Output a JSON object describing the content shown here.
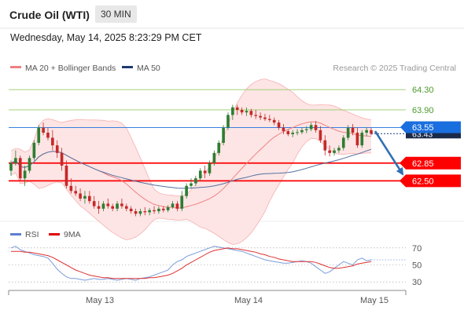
{
  "header": {
    "instrument": "Crude Oil (WTI)",
    "timeframe": "30 MIN",
    "datetime": "Wednesday, May 14, 2025 8:23:29 PM CET"
  },
  "legend": {
    "ma20_bb": "MA 20 + Bollinger Bands",
    "ma50": "MA 50",
    "credit": "Research © 2025 Trading Central",
    "rsi": "RSI",
    "ma9": "9MA"
  },
  "colors": {
    "bull": "#2e7d32",
    "bear": "#c62828",
    "bollinger_fill": "#fde0e0",
    "ma20": "#f08080",
    "ma50": "#5470a0",
    "support": "#ff0000",
    "resistance": "#99cc66",
    "last_price": "#1a6fdf",
    "projection": "#2f6fb4",
    "rsi": "#7a9cd8",
    "rsi_ma": "#e03030"
  },
  "chart_data": [
    {
      "type": "candlestick",
      "x_labels": [
        "May 13",
        "May 14",
        "May 15"
      ],
      "y_range": [
        61.7,
        64.55
      ],
      "levels": [
        {
          "value": 64.3,
          "label": "64.30",
          "kind": "resistance"
        },
        {
          "value": 63.9,
          "label": "63.90",
          "kind": "resistance"
        },
        {
          "value": 63.55,
          "label": "63.55",
          "kind": "pivot"
        },
        {
          "value": 62.85,
          "label": "62.85",
          "kind": "support"
        },
        {
          "value": 62.5,
          "label": "62.50",
          "kind": "support"
        }
      ],
      "last_price": {
        "value": 63.43,
        "label": "63.43"
      },
      "candles": [
        [
          62.7,
          62.9,
          62.6,
          62.85
        ],
        [
          62.85,
          63.1,
          62.8,
          62.95
        ],
        [
          62.95,
          63.0,
          62.5,
          62.55
        ],
        [
          62.55,
          62.8,
          62.4,
          62.7
        ],
        [
          62.7,
          63.0,
          62.65,
          62.95
        ],
        [
          62.95,
          63.3,
          62.9,
          63.25
        ],
        [
          63.25,
          63.6,
          63.2,
          63.55
        ],
        [
          63.55,
          63.65,
          63.4,
          63.45
        ],
        [
          63.45,
          63.55,
          63.3,
          63.35
        ],
        [
          63.35,
          63.5,
          63.1,
          63.2
        ],
        [
          63.2,
          63.3,
          62.95,
          63.05
        ],
        [
          63.05,
          63.15,
          62.7,
          62.8
        ],
        [
          62.8,
          62.9,
          62.35,
          62.4
        ],
        [
          62.4,
          62.55,
          62.25,
          62.3
        ],
        [
          62.3,
          62.4,
          62.2,
          62.25
        ],
        [
          62.25,
          62.35,
          62.1,
          62.15
        ],
        [
          62.15,
          62.3,
          62.05,
          62.2
        ],
        [
          62.2,
          62.3,
          62.05,
          62.1
        ],
        [
          62.1,
          62.2,
          61.95,
          62.0
        ],
        [
          62.0,
          62.1,
          61.85,
          61.95
        ],
        [
          61.95,
          62.1,
          61.9,
          62.05
        ],
        [
          62.05,
          62.15,
          61.95,
          62.0
        ],
        [
          62.0,
          62.05,
          61.9,
          61.95
        ],
        [
          61.95,
          62.1,
          61.9,
          62.05
        ],
        [
          62.05,
          62.15,
          61.95,
          62.0
        ],
        [
          62.0,
          62.05,
          61.9,
          61.95
        ],
        [
          61.95,
          62.0,
          61.85,
          61.9
        ],
        [
          61.9,
          61.95,
          61.8,
          61.85
        ],
        [
          61.85,
          61.95,
          61.8,
          61.9
        ],
        [
          61.9,
          61.98,
          61.82,
          61.88
        ],
        [
          61.88,
          61.96,
          61.82,
          61.92
        ],
        [
          61.92,
          62.0,
          61.85,
          61.9
        ],
        [
          61.9,
          62.0,
          61.85,
          61.95
        ],
        [
          61.95,
          62.0,
          61.88,
          61.92
        ],
        [
          61.92,
          62.02,
          61.88,
          61.98
        ],
        [
          61.98,
          62.1,
          61.95,
          62.05
        ],
        [
          62.05,
          62.1,
          61.9,
          61.95
        ],
        [
          61.95,
          62.3,
          61.9,
          62.2
        ],
        [
          62.2,
          62.45,
          62.15,
          62.4
        ],
        [
          62.4,
          62.55,
          62.35,
          62.45
        ],
        [
          62.45,
          62.6,
          62.4,
          62.55
        ],
        [
          62.55,
          62.75,
          62.5,
          62.7
        ],
        [
          62.7,
          62.8,
          62.55,
          62.65
        ],
        [
          62.65,
          62.9,
          62.6,
          62.85
        ],
        [
          62.85,
          63.1,
          62.8,
          63.05
        ],
        [
          63.05,
          63.3,
          63.0,
          63.25
        ],
        [
          63.25,
          63.6,
          63.2,
          63.55
        ],
        [
          63.55,
          63.85,
          63.5,
          63.8
        ],
        [
          63.8,
          64.0,
          63.7,
          63.95
        ],
        [
          63.95,
          64.0,
          63.8,
          63.9
        ],
        [
          63.9,
          63.95,
          63.8,
          63.85
        ],
        [
          63.85,
          63.95,
          63.78,
          63.88
        ],
        [
          63.88,
          63.92,
          63.75,
          63.8
        ],
        [
          63.8,
          63.9,
          63.72,
          63.78
        ],
        [
          63.78,
          63.85,
          63.7,
          63.75
        ],
        [
          63.75,
          63.82,
          63.68,
          63.72
        ],
        [
          63.72,
          63.8,
          63.66,
          63.7
        ],
        [
          63.7,
          63.75,
          63.6,
          63.65
        ],
        [
          63.65,
          63.7,
          63.5,
          63.55
        ],
        [
          63.55,
          63.62,
          63.42,
          63.48
        ],
        [
          63.48,
          63.52,
          63.38,
          63.42
        ],
        [
          63.42,
          63.5,
          63.36,
          63.45
        ],
        [
          63.45,
          63.52,
          63.4,
          63.46
        ],
        [
          63.46,
          63.55,
          63.42,
          63.5
        ],
        [
          63.5,
          63.58,
          63.44,
          63.52
        ],
        [
          63.52,
          63.65,
          63.48,
          63.6
        ],
        [
          63.6,
          63.68,
          63.45,
          63.5
        ],
        [
          63.5,
          63.58,
          63.25,
          63.3
        ],
        [
          63.3,
          63.4,
          63.0,
          63.1
        ],
        [
          63.1,
          63.2,
          62.98,
          63.05
        ],
        [
          63.05,
          63.15,
          63.0,
          63.1
        ],
        [
          63.1,
          63.2,
          63.05,
          63.15
        ],
        [
          63.15,
          63.4,
          63.1,
          63.35
        ],
        [
          63.35,
          63.6,
          63.3,
          63.55
        ],
        [
          63.55,
          63.62,
          63.4,
          63.45
        ],
        [
          63.45,
          63.55,
          63.15,
          63.2
        ],
        [
          63.2,
          63.5,
          63.15,
          63.45
        ],
        [
          63.45,
          63.55,
          63.38,
          63.5
        ],
        [
          63.5,
          63.55,
          63.4,
          63.43
        ]
      ]
    },
    {
      "type": "line",
      "name": "RSI",
      "y_ticks": [
        70,
        50,
        30
      ],
      "y_range": [
        20,
        80
      ],
      "rsi": [
        70,
        72,
        68,
        66,
        64,
        62,
        61,
        60,
        58,
        52,
        45,
        40,
        36,
        34,
        34,
        33,
        32,
        33,
        34,
        33,
        33,
        34,
        33,
        32,
        33,
        34,
        33,
        32,
        34,
        35,
        36,
        38,
        40,
        42,
        44,
        50,
        54,
        56,
        60,
        62,
        64,
        66,
        68,
        70,
        72,
        71,
        70,
        69,
        68,
        67,
        66,
        64,
        62,
        60,
        58,
        56,
        55,
        54,
        53,
        52,
        52,
        53,
        54,
        55,
        54,
        52,
        48,
        44,
        40,
        42,
        46,
        50,
        54,
        52,
        50,
        56,
        58,
        55,
        56
      ],
      "rsi_ma": [
        66,
        66,
        66,
        65,
        65,
        64,
        63,
        62,
        61,
        59,
        56,
        53,
        50,
        47,
        44,
        42,
        40,
        38,
        37,
        36,
        35,
        35,
        34,
        34,
        34,
        34,
        34,
        34,
        34,
        34,
        35,
        35,
        36,
        37,
        38,
        40,
        43,
        46,
        50,
        53,
        56,
        59,
        62,
        65,
        67,
        68,
        69,
        70,
        69,
        69,
        68,
        67,
        66,
        65,
        63,
        62,
        60,
        59,
        57,
        56,
        55,
        54,
        54,
        54,
        54,
        54,
        53,
        51,
        49,
        47,
        46,
        46,
        47,
        48,
        49,
        51,
        52,
        53,
        54
      ]
    }
  ]
}
